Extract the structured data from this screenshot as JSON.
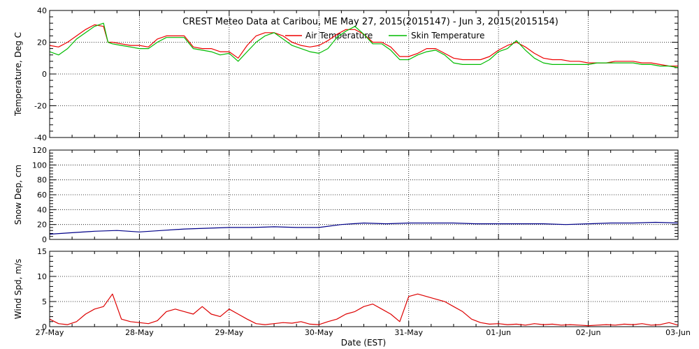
{
  "header": {
    "title": "CREST Meteo Data at Caribou, ME   May 27, 2015(2015147) - Jun  3, 2015(2015154)"
  },
  "colors": {
    "air": "#ee0000",
    "skin": "#00bb00",
    "snow": "#000088",
    "wind": "#dd0000",
    "axes": "#000000",
    "grid": "#000000"
  },
  "chart_data": [
    {
      "type": "line",
      "title": "CREST Meteo Data at Caribou, ME   May 27, 2015(2015147) - Jun  3, 2015(2015154)",
      "ylabel": "Temperature, Deg C",
      "xlabel": "",
      "ylim": [
        -40,
        40
      ],
      "yticks": [
        -40,
        -20,
        0,
        20,
        40
      ],
      "grid": true,
      "legend": "top-center",
      "x_categories": [
        "27-May",
        "28-May",
        "29-May",
        "30-May",
        "31-May",
        "01-Jun",
        "02-Jun",
        "03-Jun"
      ],
      "series": [
        {
          "name": "Air Temperature",
          "color": "#ee0000",
          "x": [
            0,
            0.1,
            0.2,
            0.3,
            0.4,
            0.5,
            0.6,
            0.65,
            0.7,
            0.8,
            0.9,
            1.0,
            1.1,
            1.2,
            1.3,
            1.4,
            1.5,
            1.6,
            1.7,
            1.8,
            1.9,
            2.0,
            2.1,
            2.2,
            2.3,
            2.4,
            2.5,
            2.6,
            2.7,
            2.8,
            2.9,
            3.0,
            3.1,
            3.2,
            3.3,
            3.4,
            3.5,
            3.6,
            3.7,
            3.8,
            3.9,
            4.0,
            4.1,
            4.2,
            4.3,
            4.4,
            4.5,
            4.6,
            4.7,
            4.8,
            4.9,
            5.0,
            5.1,
            5.2,
            5.3,
            5.4,
            5.5,
            5.6,
            5.7,
            5.8,
            5.9,
            6.0,
            6.1,
            6.2,
            6.3,
            6.4,
            6.5,
            6.6,
            6.7,
            6.8,
            6.9,
            7.0
          ],
          "values": [
            18,
            17,
            20,
            24,
            28,
            31,
            30,
            20,
            20,
            19,
            18,
            18,
            17,
            22,
            24,
            24,
            24,
            17,
            16,
            16,
            14,
            14,
            10,
            18,
            24,
            26,
            26,
            24,
            20,
            18,
            17,
            18,
            21,
            25,
            28,
            28,
            25,
            20,
            20,
            17,
            11,
            11,
            13,
            16,
            16,
            13,
            10,
            9,
            9,
            9,
            11,
            15,
            18,
            20,
            17,
            13,
            10,
            9,
            9,
            8,
            8,
            7,
            7,
            7,
            8,
            8,
            8,
            7,
            7,
            6,
            5,
            5
          ]
        },
        {
          "name": "Skin Temperature",
          "color": "#00bb00",
          "x": [
            0,
            0.1,
            0.2,
            0.3,
            0.4,
            0.5,
            0.6,
            0.65,
            0.7,
            0.8,
            0.9,
            1.0,
            1.1,
            1.2,
            1.3,
            1.4,
            1.5,
            1.6,
            1.7,
            1.8,
            1.9,
            2.0,
            2.1,
            2.2,
            2.3,
            2.4,
            2.5,
            2.6,
            2.7,
            2.8,
            2.9,
            3.0,
            3.1,
            3.2,
            3.3,
            3.4,
            3.5,
            3.6,
            3.7,
            3.8,
            3.9,
            4.0,
            4.1,
            4.2,
            4.3,
            4.4,
            4.5,
            4.6,
            4.7,
            4.8,
            4.9,
            5.0,
            5.1,
            5.2,
            5.3,
            5.4,
            5.5,
            5.6,
            5.7,
            5.8,
            5.9,
            6.0,
            6.1,
            6.2,
            6.3,
            6.4,
            6.5,
            6.6,
            6.7,
            6.8,
            6.9,
            7.0
          ],
          "values": [
            14,
            12,
            16,
            22,
            26,
            30,
            32,
            20,
            19,
            18,
            17,
            16,
            16,
            20,
            23,
            23,
            23,
            16,
            15,
            14,
            12,
            13,
            8,
            14,
            20,
            24,
            26,
            22,
            18,
            16,
            14,
            13,
            16,
            23,
            27,
            30,
            25,
            19,
            19,
            15,
            9,
            9,
            12,
            14,
            15,
            12,
            7,
            6,
            6,
            6,
            9,
            14,
            16,
            21,
            15,
            10,
            7,
            6,
            6,
            6,
            6,
            6,
            7,
            7,
            7,
            7,
            7,
            6,
            6,
            5,
            5,
            4
          ]
        }
      ]
    },
    {
      "type": "line",
      "ylabel": "Snow Dep, cm",
      "xlabel": "",
      "ylim": [
        0,
        120
      ],
      "yticks": [
        0,
        20,
        40,
        60,
        80,
        100,
        120
      ],
      "grid": true,
      "x_categories": [
        "27-May",
        "28-May",
        "29-May",
        "30-May",
        "31-May",
        "01-Jun",
        "02-Jun",
        "03-Jun"
      ],
      "series": [
        {
          "color": "#000088",
          "x": [
            0,
            0.25,
            0.5,
            0.75,
            1.0,
            1.25,
            1.5,
            1.75,
            2.0,
            2.25,
            2.5,
            2.75,
            3.0,
            3.25,
            3.5,
            3.75,
            4.0,
            4.25,
            4.5,
            4.75,
            5.0,
            5.25,
            5.5,
            5.75,
            6.0,
            6.25,
            6.5,
            6.75,
            7.0
          ],
          "values": [
            7,
            9,
            11,
            12,
            10,
            12,
            14,
            15,
            16,
            16,
            17,
            16,
            16,
            20,
            22,
            21,
            22,
            22,
            22,
            21,
            21,
            21,
            21,
            20,
            21,
            22,
            22,
            23,
            22
          ]
        }
      ]
    },
    {
      "type": "line",
      "ylabel": "Wind Spd, m/s",
      "xlabel": "Date (EST)",
      "ylim": [
        0,
        15
      ],
      "yticks": [
        0,
        5,
        10,
        15
      ],
      "grid": true,
      "x_categories": [
        "27-May",
        "28-May",
        "29-May",
        "30-May",
        "31-May",
        "01-Jun",
        "02-Jun",
        "03-Jun"
      ],
      "series": [
        {
          "color": "#dd0000",
          "x": [
            0,
            0.1,
            0.2,
            0.3,
            0.4,
            0.5,
            0.6,
            0.7,
            0.8,
            0.9,
            1.0,
            1.1,
            1.2,
            1.3,
            1.4,
            1.5,
            1.6,
            1.7,
            1.8,
            1.9,
            2.0,
            2.1,
            2.2,
            2.3,
            2.4,
            2.5,
            2.6,
            2.7,
            2.8,
            2.9,
            3.0,
            3.1,
            3.2,
            3.3,
            3.4,
            3.5,
            3.6,
            3.7,
            3.8,
            3.9,
            4.0,
            4.1,
            4.2,
            4.3,
            4.4,
            4.5,
            4.6,
            4.7,
            4.8,
            4.9,
            5.0,
            5.1,
            5.2,
            5.3,
            5.4,
            5.5,
            5.6,
            5.7,
            5.8,
            5.9,
            6.0,
            6.1,
            6.2,
            6.3,
            6.4,
            6.5,
            6.6,
            6.7,
            6.8,
            6.9,
            7.0
          ],
          "values": [
            1.5,
            0.6,
            0.4,
            1.0,
            2.5,
            3.5,
            4.0,
            6.5,
            1.5,
            1.0,
            0.8,
            0.6,
            1.2,
            3.0,
            3.5,
            3.0,
            2.5,
            4.0,
            2.5,
            2.0,
            3.5,
            2.5,
            1.5,
            0.6,
            0.4,
            0.6,
            0.8,
            0.7,
            1.0,
            0.5,
            0.4,
            1.0,
            1.5,
            2.5,
            3.0,
            4.0,
            4.5,
            3.5,
            2.5,
            1.0,
            6.0,
            6.5,
            6.0,
            5.5,
            5.0,
            4.0,
            3.0,
            1.5,
            0.8,
            0.5,
            0.6,
            0.4,
            0.5,
            0.3,
            0.6,
            0.4,
            0.5,
            0.3,
            0.4,
            0.3,
            0.2,
            0.3,
            0.4,
            0.3,
            0.5,
            0.4,
            0.6,
            0.3,
            0.4,
            0.8,
            0.3
          ]
        }
      ]
    }
  ]
}
